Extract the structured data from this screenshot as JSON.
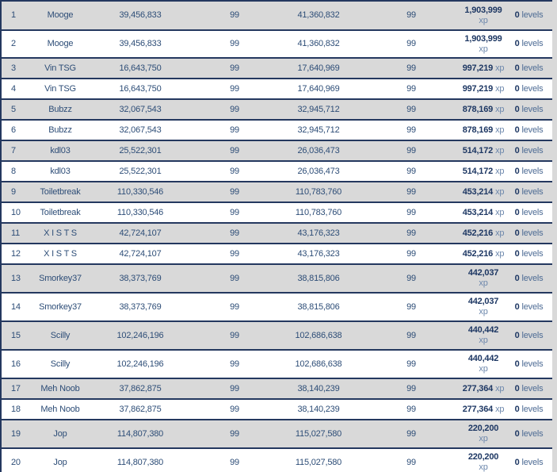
{
  "colors": {
    "border_navy": "#24385f",
    "row_shaded": "#d9d9d9",
    "row_white": "#ffffff",
    "text_regular": "#2d4d77",
    "text_bold": "#1d3763",
    "suffix_light": "#6c87ac"
  },
  "table": {
    "xp_suffix": "xp",
    "levels_suffix": "levels",
    "rows": [
      {
        "rank": "1",
        "name": "Mooge",
        "start_xp": "39,456,833",
        "start_level": "99",
        "end_xp": "41,360,832",
        "end_level": "99",
        "xp_gained": "1,903,999",
        "levels_gained": "0",
        "xp_two_line": true
      },
      {
        "rank": "2",
        "name": "Mooge",
        "start_xp": "39,456,833",
        "start_level": "99",
        "end_xp": "41,360,832",
        "end_level": "99",
        "xp_gained": "1,903,999",
        "levels_gained": "0",
        "xp_two_line": true
      },
      {
        "rank": "3",
        "name": "Vin TSG",
        "start_xp": "16,643,750",
        "start_level": "99",
        "end_xp": "17,640,969",
        "end_level": "99",
        "xp_gained": "997,219",
        "levels_gained": "0",
        "xp_two_line": false
      },
      {
        "rank": "4",
        "name": "Vin TSG",
        "start_xp": "16,643,750",
        "start_level": "99",
        "end_xp": "17,640,969",
        "end_level": "99",
        "xp_gained": "997,219",
        "levels_gained": "0",
        "xp_two_line": false
      },
      {
        "rank": "5",
        "name": "Bubzz",
        "start_xp": "32,067,543",
        "start_level": "99",
        "end_xp": "32,945,712",
        "end_level": "99",
        "xp_gained": "878,169",
        "levels_gained": "0",
        "xp_two_line": false
      },
      {
        "rank": "6",
        "name": "Bubzz",
        "start_xp": "32,067,543",
        "start_level": "99",
        "end_xp": "32,945,712",
        "end_level": "99",
        "xp_gained": "878,169",
        "levels_gained": "0",
        "xp_two_line": false
      },
      {
        "rank": "7",
        "name": "kdl03",
        "start_xp": "25,522,301",
        "start_level": "99",
        "end_xp": "26,036,473",
        "end_level": "99",
        "xp_gained": "514,172",
        "levels_gained": "0",
        "xp_two_line": false
      },
      {
        "rank": "8",
        "name": "kdl03",
        "start_xp": "25,522,301",
        "start_level": "99",
        "end_xp": "26,036,473",
        "end_level": "99",
        "xp_gained": "514,172",
        "levels_gained": "0",
        "xp_two_line": false
      },
      {
        "rank": "9",
        "name": "Toiletbreak",
        "start_xp": "110,330,546",
        "start_level": "99",
        "end_xp": "110,783,760",
        "end_level": "99",
        "xp_gained": "453,214",
        "levels_gained": "0",
        "xp_two_line": false
      },
      {
        "rank": "10",
        "name": "Toiletbreak",
        "start_xp": "110,330,546",
        "start_level": "99",
        "end_xp": "110,783,760",
        "end_level": "99",
        "xp_gained": "453,214",
        "levels_gained": "0",
        "xp_two_line": false
      },
      {
        "rank": "11",
        "name": "X I S T S",
        "start_xp": "42,724,107",
        "start_level": "99",
        "end_xp": "43,176,323",
        "end_level": "99",
        "xp_gained": "452,216",
        "levels_gained": "0",
        "xp_two_line": false
      },
      {
        "rank": "12",
        "name": "X I S T S",
        "start_xp": "42,724,107",
        "start_level": "99",
        "end_xp": "43,176,323",
        "end_level": "99",
        "xp_gained": "452,216",
        "levels_gained": "0",
        "xp_two_line": false
      },
      {
        "rank": "13",
        "name": "Smorkey37",
        "start_xp": "38,373,769",
        "start_level": "99",
        "end_xp": "38,815,806",
        "end_level": "99",
        "xp_gained": "442,037",
        "levels_gained": "0",
        "xp_two_line": true
      },
      {
        "rank": "14",
        "name": "Smorkey37",
        "start_xp": "38,373,769",
        "start_level": "99",
        "end_xp": "38,815,806",
        "end_level": "99",
        "xp_gained": "442,037",
        "levels_gained": "0",
        "xp_two_line": true
      },
      {
        "rank": "15",
        "name": "Scilly",
        "start_xp": "102,246,196",
        "start_level": "99",
        "end_xp": "102,686,638",
        "end_level": "99",
        "xp_gained": "440,442",
        "levels_gained": "0",
        "xp_two_line": true
      },
      {
        "rank": "16",
        "name": "Scilly",
        "start_xp": "102,246,196",
        "start_level": "99",
        "end_xp": "102,686,638",
        "end_level": "99",
        "xp_gained": "440,442",
        "levels_gained": "0",
        "xp_two_line": true
      },
      {
        "rank": "17",
        "name": "Meh Noob",
        "start_xp": "37,862,875",
        "start_level": "99",
        "end_xp": "38,140,239",
        "end_level": "99",
        "xp_gained": "277,364",
        "levels_gained": "0",
        "xp_two_line": false
      },
      {
        "rank": "18",
        "name": "Meh Noob",
        "start_xp": "37,862,875",
        "start_level": "99",
        "end_xp": "38,140,239",
        "end_level": "99",
        "xp_gained": "277,364",
        "levels_gained": "0",
        "xp_two_line": false
      },
      {
        "rank": "19",
        "name": "Jop",
        "start_xp": "114,807,380",
        "start_level": "99",
        "end_xp": "115,027,580",
        "end_level": "99",
        "xp_gained": "220,200",
        "levels_gained": "0",
        "xp_two_line": true
      },
      {
        "rank": "20",
        "name": "Jop",
        "start_xp": "114,807,380",
        "start_level": "99",
        "end_xp": "115,027,580",
        "end_level": "99",
        "xp_gained": "220,200",
        "levels_gained": "0",
        "xp_two_line": true
      }
    ]
  }
}
